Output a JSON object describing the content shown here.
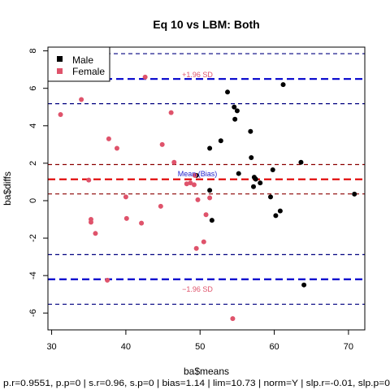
{
  "chart_data": {
    "type": "scatter",
    "title": "Eq 10 vs LBM: Both",
    "xlabel": "ba$means",
    "ylabel": "ba$diffs",
    "xlim": [
      29.5,
      72.2
    ],
    "ylim": [
      -6.9,
      8.2
    ],
    "x_ticks": [
      30,
      40,
      50,
      60,
      70
    ],
    "y_ticks": [
      -6,
      -4,
      -2,
      0,
      2,
      4,
      6,
      8
    ],
    "legend": {
      "placement": "top-left",
      "entries": [
        "Male",
        "Female"
      ]
    },
    "footer": "p.r=0.9551, p.p=0 | s.r=0.96, s.p=0 | bias=1.14 | lim=10.73 | norm=Y | slp.r=-0.01, slp.p=0",
    "annotations": {
      "upper": "+1.96 SD",
      "mean": "Mean (Bias)",
      "lower": "−1.96 SD"
    },
    "colors": {
      "male": "#000000",
      "female": "#DF536B",
      "mean_line": "#e00000",
      "mean_ci": "#8b0000",
      "loa_line": "#0000cc",
      "loa_ci": "#000080"
    },
    "reference_lines": {
      "mean": 1.14,
      "mean_ci": [
        1.93,
        0.36
      ],
      "upper_loa": 6.5,
      "upper_loa_ci": [
        7.85,
        5.18
      ],
      "lower_loa": -4.2,
      "lower_loa_ci": [
        -2.88,
        -5.53
      ]
    },
    "series": [
      {
        "name": "Male",
        "points": [
          [
            49.5,
            1.35
          ],
          [
            51.3,
            2.8
          ],
          [
            52.8,
            3.2
          ],
          [
            53.7,
            5.8
          ],
          [
            54.6,
            5.0
          ],
          [
            54.7,
            4.35
          ],
          [
            55.0,
            4.8
          ],
          [
            55.2,
            1.45
          ],
          [
            56.8,
            3.7
          ],
          [
            56.9,
            2.3
          ],
          [
            57.3,
            1.25
          ],
          [
            57.5,
            1.15
          ],
          [
            58.1,
            0.95
          ],
          [
            57.2,
            0.75
          ],
          [
            59.5,
            0.2
          ],
          [
            59.8,
            1.65
          ],
          [
            60.2,
            -0.8
          ],
          [
            60.8,
            -0.55
          ],
          [
            61.2,
            6.2
          ],
          [
            63.6,
            2.05
          ],
          [
            64.0,
            -4.5
          ],
          [
            70.8,
            0.35
          ],
          [
            51.3,
            0.55
          ],
          [
            51.6,
            -1.05
          ]
        ]
      },
      {
        "name": "Female",
        "points": [
          [
            31.2,
            4.6
          ],
          [
            34.0,
            5.4
          ],
          [
            35.0,
            1.1
          ],
          [
            35.3,
            -1.0
          ],
          [
            35.3,
            -1.15
          ],
          [
            35.9,
            -1.75
          ],
          [
            37.5,
            -4.25
          ],
          [
            37.7,
            3.3
          ],
          [
            38.8,
            2.8
          ],
          [
            40.0,
            0.2
          ],
          [
            40.1,
            -0.95
          ],
          [
            42.1,
            -1.2
          ],
          [
            42.6,
            6.6
          ],
          [
            44.7,
            -0.3
          ],
          [
            44.9,
            3.0
          ],
          [
            46.1,
            4.7
          ],
          [
            46.5,
            2.05
          ],
          [
            48.2,
            0.9
          ],
          [
            48.7,
            0.95
          ],
          [
            49.2,
            0.85
          ],
          [
            49.3,
            1.35
          ],
          [
            49.5,
            -2.55
          ],
          [
            49.7,
            0.05
          ],
          [
            50.5,
            -2.2
          ],
          [
            50.8,
            -0.75
          ],
          [
            51.3,
            0.15
          ],
          [
            54.4,
            -6.3
          ]
        ]
      }
    ]
  }
}
